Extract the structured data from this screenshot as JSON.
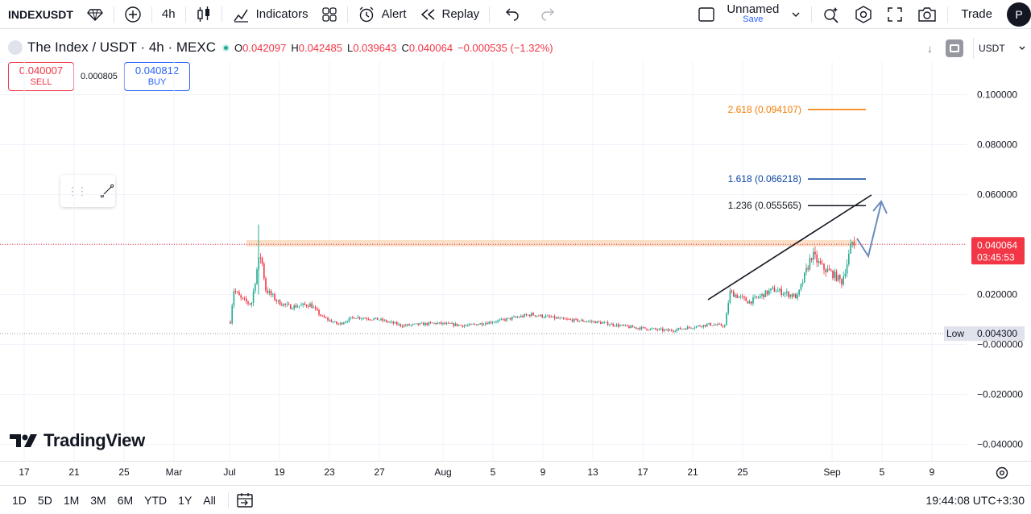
{
  "toolbar": {
    "symbol": "INDEXUSDT",
    "interval": "4h",
    "indicators": "Indicators",
    "alert": "Alert",
    "replay": "Replay",
    "layout_name": "Unnamed",
    "layout_save": "Save",
    "trade": "Trade",
    "profile_initial": "P"
  },
  "legend": {
    "title": "The Index / USDT · 4h · MEXC",
    "open_label": "O",
    "open": "0.042097",
    "high_label": "H",
    "high": "0.042485",
    "low_label": "L",
    "low": "0.039643",
    "close_label": "C",
    "close": "0.040064",
    "change": "−0.000535 (−1.32%)"
  },
  "quote": {
    "sell_price": "0.040007",
    "sell_label": "SELL",
    "spread": "0.000805",
    "buy_price": "0.040812",
    "buy_label": "BUY"
  },
  "currency": "USDT",
  "price_axis": {
    "ticks": [
      "0.100000",
      "0.080000",
      "0.060000",
      "0.020000",
      "−0.000000",
      "−0.020000",
      "−0.040000"
    ],
    "current_price": "0.040064",
    "countdown": "03:45:53",
    "low_label": "Low",
    "low_value": "0.004300"
  },
  "fib_levels": [
    {
      "label": "2.618 (0.094107)",
      "value": 0.094107,
      "color": "#f57c00"
    },
    {
      "label": "1.618 (0.066218)",
      "value": 0.066218,
      "color": "#0d47a1"
    },
    {
      "label": "1.236 (0.055565)",
      "value": 0.055565,
      "color": "#131722"
    }
  ],
  "time_axis": [
    "17",
    "21",
    "25",
    "Mar",
    "Jul",
    "19",
    "23",
    "27",
    "Aug",
    "5",
    "9",
    "13",
    "17",
    "21",
    "25",
    "Sep",
    "5",
    "9"
  ],
  "bottom_bar": {
    "ranges": [
      "1D",
      "5D",
      "1M",
      "3M",
      "6M",
      "YTD",
      "1Y",
      "All"
    ],
    "clock": "19:44:08 UTC+3:30"
  },
  "logo": "TradingView",
  "colors": {
    "up": "#22ab94",
    "down": "#f23645",
    "resistance_zone": "#f7c79a",
    "arrow": "#6b8bbf"
  }
}
